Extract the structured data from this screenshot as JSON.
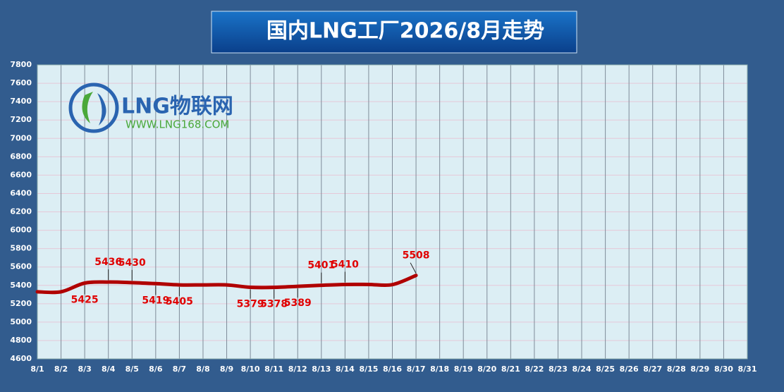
{
  "chart_data": {
    "type": "line",
    "title": "国内LNG工厂2026/8月走势",
    "watermark": {
      "name": "LNG物联网",
      "url": "WWW.LNG168.COM"
    },
    "categories": [
      "8/1",
      "8/2",
      "8/3",
      "8/4",
      "8/5",
      "8/6",
      "8/7",
      "8/8",
      "8/9",
      "8/10",
      "8/11",
      "8/12",
      "8/13",
      "8/14",
      "8/15",
      "8/16",
      "8/17",
      "8/18",
      "8/19",
      "8/20",
      "8/21",
      "8/22",
      "8/23",
      "8/24",
      "8/25",
      "8/26",
      "8/27",
      "8/28",
      "8/29",
      "8/30",
      "8/31"
    ],
    "series": [
      {
        "name": "国内LNG工厂",
        "color": "#b00000",
        "values": [
          5330,
          5330,
          5425,
          5436,
          5430,
          5419,
          5405,
          5405,
          5405,
          5379,
          5378,
          5389,
          5401,
          5410,
          5410,
          5408,
          5508,
          null,
          null,
          null,
          null,
          null,
          null,
          null,
          null,
          null,
          null,
          null,
          null,
          null,
          null
        ],
        "value_labels": [
          null,
          null,
          "5425",
          "5436",
          "5430",
          "5419",
          "5405",
          null,
          null,
          "5379",
          "5378",
          "5389",
          "5401",
          "5410",
          null,
          null,
          "5508",
          null,
          null,
          null,
          null,
          null,
          null,
          null,
          null,
          null,
          null,
          null,
          null,
          null,
          null
        ]
      }
    ],
    "ylim": [
      4600,
      7800
    ],
    "yticks": [
      4600,
      4800,
      5000,
      5200,
      5400,
      5600,
      5800,
      6000,
      6200,
      6400,
      6600,
      6800,
      7000,
      7200,
      7400,
      7600,
      7800
    ],
    "grid": true
  }
}
